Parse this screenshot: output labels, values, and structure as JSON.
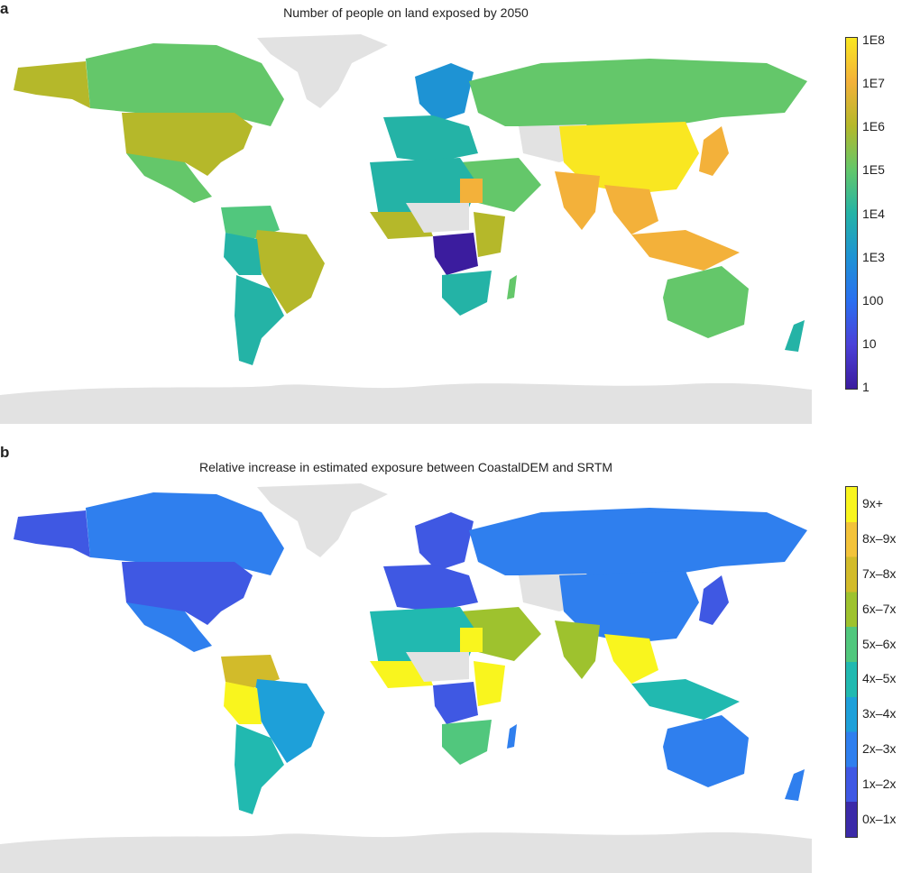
{
  "panel_a": {
    "letter": "a",
    "title": "Number of people on land exposed by 2050",
    "colorbar": {
      "ticks": [
        "1E8",
        "1E7",
        "1E6",
        "1E5",
        "1E4",
        "1E3",
        "100",
        "10",
        "1"
      ],
      "colors_top_to_bottom": [
        "#f9e721",
        "#f3b13a",
        "#b5b82a",
        "#64c76a",
        "#24b3a6",
        "#1e93d4",
        "#2a6ff0",
        "#4b41d8",
        "#3b1c9e"
      ]
    }
  },
  "panel_b": {
    "letter": "b",
    "title": "Relative increase in estimated exposure between CoastalDEM and SRTM",
    "colorbar": {
      "ticks": [
        "9x+",
        "8x–9x",
        "7x–8x",
        "6x–7x",
        "5x–6x",
        "4x–5x",
        "3x–4x",
        "2x–3x",
        "1x–2x",
        "0x–1x"
      ],
      "colors_top_to_bottom": [
        "#f9f51e",
        "#f3c33a",
        "#d2bb2a",
        "#9ec22e",
        "#51c77d",
        "#21b9b0",
        "#1ea0d9",
        "#2f7fee",
        "#3f58e3",
        "#3b2aa8"
      ]
    }
  },
  "palette": {
    "no_data": "#e2e2e2",
    "ocean": "#ffffff"
  }
}
